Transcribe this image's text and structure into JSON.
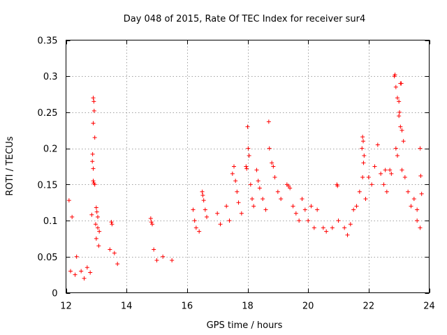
{
  "chart_data": {
    "type": "scatter",
    "title": "Day 048 of 2015, Rate Of TEC Index for receiver sur4",
    "xlabel": "GPS time / hours",
    "ylabel": "ROTI / TECUs",
    "xlim": [
      12,
      24
    ],
    "ylim": [
      0,
      0.35
    ],
    "xticks": [
      12,
      14,
      16,
      18,
      20,
      22,
      24
    ],
    "xtick_labels": [
      "12",
      "14",
      "16",
      "18",
      "20",
      "22",
      "24"
    ],
    "yticks": [
      0,
      0.05,
      0.1,
      0.15,
      0.2,
      0.25,
      0.3,
      0.35
    ],
    "ytick_labels": [
      "0",
      "0.05",
      "0.1",
      "0.15",
      "0.2",
      "0.25",
      "0.3",
      "0.35"
    ],
    "grid": true,
    "marker": "+",
    "color": "#ff0000",
    "series": [
      {
        "name": "ROTI",
        "points": [
          [
            12.1,
            0.128
          ],
          [
            12.2,
            0.105
          ],
          [
            12.35,
            0.05
          ],
          [
            12.15,
            0.03
          ],
          [
            12.3,
            0.025
          ],
          [
            12.5,
            0.03
          ],
          [
            12.6,
            0.02
          ],
          [
            12.7,
            0.035
          ],
          [
            12.8,
            0.028
          ],
          [
            12.9,
            0.27
          ],
          [
            12.92,
            0.265
          ],
          [
            12.93,
            0.252
          ],
          [
            12.9,
            0.235
          ],
          [
            12.95,
            0.215
          ],
          [
            12.88,
            0.192
          ],
          [
            12.87,
            0.182
          ],
          [
            12.9,
            0.172
          ],
          [
            12.92,
            0.152
          ],
          [
            12.95,
            0.15
          ],
          [
            12.9,
            0.155
          ],
          [
            13.0,
            0.118
          ],
          [
            13.02,
            0.112
          ],
          [
            13.05,
            0.105
          ],
          [
            12.98,
            0.095
          ],
          [
            13.05,
            0.09
          ],
          [
            13.1,
            0.085
          ],
          [
            13.0,
            0.075
          ],
          [
            13.08,
            0.065
          ],
          [
            12.85,
            0.108
          ],
          [
            13.5,
            0.098
          ],
          [
            13.52,
            0.095
          ],
          [
            13.45,
            0.06
          ],
          [
            13.6,
            0.055
          ],
          [
            13.7,
            0.04
          ],
          [
            14.8,
            0.103
          ],
          [
            14.82,
            0.098
          ],
          [
            14.85,
            0.095
          ],
          [
            14.9,
            0.06
          ],
          [
            15.0,
            0.045
          ],
          [
            15.2,
            0.05
          ],
          [
            15.5,
            0.045
          ],
          [
            16.2,
            0.115
          ],
          [
            16.25,
            0.1
          ],
          [
            16.3,
            0.09
          ],
          [
            16.5,
            0.14
          ],
          [
            16.52,
            0.135
          ],
          [
            16.55,
            0.128
          ],
          [
            16.6,
            0.115
          ],
          [
            16.65,
            0.105
          ],
          [
            16.4,
            0.085
          ],
          [
            17.0,
            0.11
          ],
          [
            17.1,
            0.095
          ],
          [
            17.3,
            0.12
          ],
          [
            17.4,
            0.1
          ],
          [
            17.5,
            0.165
          ],
          [
            17.55,
            0.175
          ],
          [
            17.6,
            0.155
          ],
          [
            17.65,
            0.14
          ],
          [
            17.7,
            0.125
          ],
          [
            17.8,
            0.11
          ],
          [
            17.95,
            0.175
          ],
          [
            17.97,
            0.172
          ],
          [
            18.0,
            0.23
          ],
          [
            18.02,
            0.2
          ],
          [
            18.05,
            0.19
          ],
          [
            18.1,
            0.15
          ],
          [
            18.15,
            0.13
          ],
          [
            18.2,
            0.12
          ],
          [
            18.3,
            0.17
          ],
          [
            18.35,
            0.155
          ],
          [
            18.4,
            0.145
          ],
          [
            18.5,
            0.13
          ],
          [
            18.6,
            0.115
          ],
          [
            18.7,
            0.237
          ],
          [
            18.72,
            0.2
          ],
          [
            18.8,
            0.18
          ],
          [
            18.85,
            0.175
          ],
          [
            18.9,
            0.16
          ],
          [
            19.0,
            0.14
          ],
          [
            19.1,
            0.13
          ],
          [
            19.3,
            0.15
          ],
          [
            19.35,
            0.148
          ],
          [
            19.4,
            0.145
          ],
          [
            19.5,
            0.12
          ],
          [
            19.6,
            0.11
          ],
          [
            19.7,
            0.1
          ],
          [
            19.8,
            0.13
          ],
          [
            19.9,
            0.115
          ],
          [
            20.0,
            0.1
          ],
          [
            20.1,
            0.12
          ],
          [
            20.2,
            0.09
          ],
          [
            20.3,
            0.115
          ],
          [
            20.5,
            0.09
          ],
          [
            20.6,
            0.085
          ],
          [
            20.8,
            0.09
          ],
          [
            20.95,
            0.15
          ],
          [
            20.97,
            0.148
          ],
          [
            21.0,
            0.1
          ],
          [
            21.2,
            0.09
          ],
          [
            21.3,
            0.08
          ],
          [
            21.4,
            0.095
          ],
          [
            21.5,
            0.115
          ],
          [
            21.6,
            0.12
          ],
          [
            21.7,
            0.14
          ],
          [
            21.8,
            0.216
          ],
          [
            21.82,
            0.21
          ],
          [
            21.78,
            0.2
          ],
          [
            21.85,
            0.19
          ],
          [
            21.83,
            0.18
          ],
          [
            21.8,
            0.16
          ],
          [
            21.9,
            0.13
          ],
          [
            22.0,
            0.16
          ],
          [
            22.1,
            0.15
          ],
          [
            22.2,
            0.175
          ],
          [
            22.3,
            0.205
          ],
          [
            22.4,
            0.165
          ],
          [
            22.5,
            0.15
          ],
          [
            22.55,
            0.17
          ],
          [
            22.6,
            0.14
          ],
          [
            22.7,
            0.17
          ],
          [
            22.75,
            0.165
          ],
          [
            22.85,
            0.3
          ],
          [
            22.87,
            0.302
          ],
          [
            22.9,
            0.285
          ],
          [
            22.95,
            0.27
          ],
          [
            23.0,
            0.265
          ],
          [
            23.05,
            0.29
          ],
          [
            23.08,
            0.29
          ],
          [
            23.02,
            0.25
          ],
          [
            23.0,
            0.245
          ],
          [
            23.05,
            0.23
          ],
          [
            23.1,
            0.225
          ],
          [
            23.15,
            0.21
          ],
          [
            22.9,
            0.2
          ],
          [
            22.95,
            0.19
          ],
          [
            23.1,
            0.17
          ],
          [
            23.2,
            0.16
          ],
          [
            23.3,
            0.14
          ],
          [
            23.4,
            0.12
          ],
          [
            23.5,
            0.13
          ],
          [
            23.6,
            0.115
          ],
          [
            23.7,
            0.2
          ],
          [
            23.72,
            0.162
          ],
          [
            23.75,
            0.137
          ],
          [
            23.6,
            0.1
          ],
          [
            23.7,
            0.09
          ]
        ]
      }
    ]
  }
}
